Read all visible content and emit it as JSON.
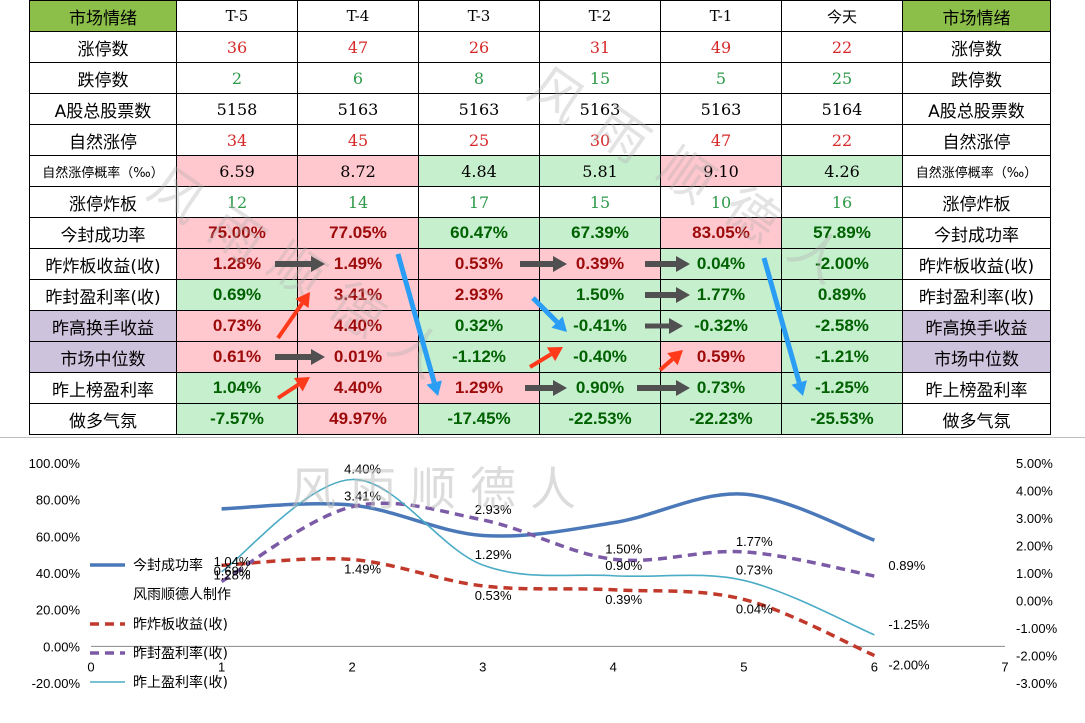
{
  "table": {
    "header": [
      "市场情绪",
      "T-5",
      "T-4",
      "T-3",
      "T-2",
      "T-1",
      "今天",
      "市场情绪"
    ],
    "rows": [
      {
        "label": "涨停数",
        "values": [
          "36",
          "47",
          "26",
          "31",
          "49",
          "22"
        ],
        "kind": "num",
        "color": "red",
        "label_bg": "",
        "cell_bg": [
          "",
          "",
          "",
          "",
          "",
          ""
        ]
      },
      {
        "label": "跌停数",
        "values": [
          "2",
          "6",
          "8",
          "15",
          "5",
          "25"
        ],
        "kind": "num",
        "color": "grn",
        "label_bg": "",
        "cell_bg": [
          "",
          "",
          "",
          "",
          "",
          ""
        ]
      },
      {
        "label": "A股总股票数",
        "values": [
          "5158",
          "5163",
          "5163",
          "5163",
          "5163",
          "5164"
        ],
        "kind": "num",
        "color": "",
        "label_bg": "",
        "cell_bg": [
          "",
          "",
          "",
          "",
          "",
          ""
        ]
      },
      {
        "label": "自然涨停",
        "values": [
          "34",
          "45",
          "25",
          "30",
          "47",
          "22"
        ],
        "kind": "num",
        "color": "red",
        "label_bg": "",
        "cell_bg": [
          "",
          "",
          "",
          "",
          "",
          ""
        ]
      },
      {
        "label": "自然涨停概率（‰）",
        "values": [
          "6.59",
          "8.72",
          "4.84",
          "5.81",
          "9.10",
          "4.26"
        ],
        "kind": "num",
        "color": "",
        "label_bg": "",
        "cell_bg": [
          "pink",
          "pink",
          "lgreen",
          "lgreen",
          "pink",
          "lgreen"
        ],
        "small": true
      },
      {
        "label": "涨停炸板",
        "values": [
          "12",
          "14",
          "17",
          "15",
          "10",
          "16"
        ],
        "kind": "num",
        "color": "grn",
        "label_bg": "",
        "cell_bg": [
          "",
          "",
          "",
          "",
          "",
          ""
        ]
      },
      {
        "label": "今封成功率",
        "values": [
          "75.00%",
          "77.05%",
          "60.47%",
          "67.39%",
          "83.05%",
          "57.89%"
        ],
        "kind": "pct",
        "color": "",
        "label_bg": "",
        "cell_bg": [
          "pink",
          "pink",
          "lgreen",
          "lgreen",
          "pink",
          "lgreen"
        ]
      },
      {
        "label": "昨炸板收益(收)",
        "values": [
          "1.28%",
          "1.49%",
          "0.53%",
          "0.39%",
          "0.04%",
          "-2.00%"
        ],
        "kind": "pct",
        "color": "",
        "label_bg": "",
        "cell_bg": [
          "pink",
          "pink",
          "pink",
          "pink",
          "lgreen",
          "lgreen"
        ]
      },
      {
        "label": "昨封盈利率(收)",
        "values": [
          "0.69%",
          "3.41%",
          "2.93%",
          "1.50%",
          "1.77%",
          "0.89%"
        ],
        "kind": "pct",
        "color": "",
        "label_bg": "",
        "cell_bg": [
          "lgreen",
          "pink",
          "pink",
          "lgreen",
          "lgreen",
          "lgreen"
        ]
      },
      {
        "label": "昨高换手收益",
        "values": [
          "0.73%",
          "4.40%",
          "0.32%",
          "-0.41%",
          "-0.32%",
          "-2.58%"
        ],
        "kind": "pct",
        "color": "",
        "label_bg": "lav",
        "cell_bg": [
          "pink",
          "pink",
          "lgreen",
          "lgreen",
          "lgreen",
          "lgreen"
        ]
      },
      {
        "label": "市场中位数",
        "values": [
          "0.61%",
          "0.01%",
          "-1.12%",
          "-0.40%",
          "0.59%",
          "-1.21%"
        ],
        "kind": "pct",
        "color": "",
        "label_bg": "lav",
        "cell_bg": [
          "pink",
          "pink",
          "lgreen",
          "lgreen",
          "pink",
          "lgreen"
        ]
      },
      {
        "label": "昨上榜盈利率",
        "values": [
          "1.04%",
          "4.40%",
          "1.29%",
          "0.90%",
          "0.73%",
          "-1.25%"
        ],
        "kind": "pct",
        "color": "",
        "label_bg": "",
        "cell_bg": [
          "lgreen",
          "pink",
          "pink",
          "lgreen",
          "lgreen",
          "lgreen"
        ]
      },
      {
        "label": "做多气氛",
        "values": [
          "-7.57%",
          "49.97%",
          "-17.45%",
          "-22.53%",
          "-22.23%",
          "-25.53%"
        ],
        "kind": "pct",
        "color": "",
        "label_bg": "",
        "cell_bg": [
          "lgreen",
          "pink",
          "lgreen",
          "lgreen",
          "lgreen",
          "lgreen"
        ]
      }
    ]
  },
  "watermark": "风雨顺德人",
  "chart_data": {
    "type": "line",
    "x": [
      1,
      2,
      3,
      4,
      5,
      6
    ],
    "xlim": [
      0,
      7
    ],
    "xticks": [
      "0",
      "1",
      "2",
      "3",
      "4",
      "5",
      "6",
      "7"
    ],
    "left_axis": {
      "ylim": [
        -20,
        100
      ],
      "ticks": [
        "100.00%",
        "80.00%",
        "60.00%",
        "40.00%",
        "20.00%",
        "0.00%",
        "-20.00%"
      ]
    },
    "right_axis": {
      "ylim": [
        -3,
        5
      ],
      "ticks": [
        "5.00%",
        "4.00%",
        "3.00%",
        "2.00%",
        "1.00%",
        "0.00%",
        "-1.00%",
        "-2.00%",
        "-3.00%"
      ]
    },
    "series": [
      {
        "name": "今封成功率",
        "axis": "left",
        "values": [
          75.0,
          77.05,
          60.47,
          67.39,
          83.05,
          57.89
        ],
        "color": "#4a78b8",
        "dash": false,
        "labels": []
      },
      {
        "name": "昨炸板收益(收)",
        "axis": "right",
        "values": [
          1.28,
          1.49,
          0.53,
          0.39,
          0.04,
          -2.0
        ],
        "color": "#c0392b",
        "dash": true,
        "labels": [
          "1.28%",
          "1.49%",
          "0.53%",
          "0.39%",
          "0.04%",
          "-2.00%"
        ]
      },
      {
        "name": "昨封盈利率(收)",
        "axis": "right",
        "values": [
          0.69,
          3.41,
          2.93,
          1.5,
          1.77,
          0.89
        ],
        "color": "#7b5aa6",
        "dash": true,
        "labels": [
          "0.69%",
          "3.41%",
          "2.93%",
          "1.50%",
          "1.77%",
          "0.89%"
        ]
      },
      {
        "name": "昨上盈利率(收)",
        "axis": "right",
        "values": [
          1.04,
          4.4,
          1.29,
          0.9,
          0.73,
          -1.25
        ],
        "color": "#4bacc6",
        "dash": false,
        "labels": [
          "1.04%",
          "4.40%",
          "1.29%",
          "0.90%",
          "0.73%",
          "-1.25%"
        ]
      }
    ],
    "legend_note": "风雨顺德人制作",
    "legend_position": "left"
  }
}
